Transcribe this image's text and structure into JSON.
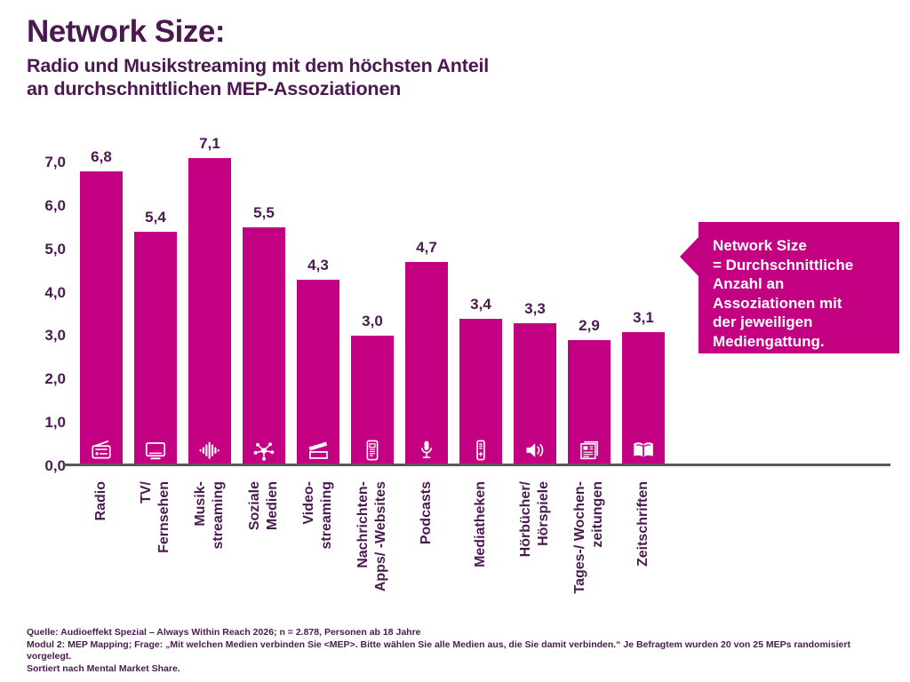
{
  "header": {
    "title": "Network Size:",
    "subtitle": "Radio und Musikstreaming mit dem höchsten Anteil\nan durchschnittlichen MEP-Assoziationen"
  },
  "callout": {
    "text": "Network Size\n= Durchschnittliche\nAnzahl an\nAssoziationen mit\nder jeweiligen\nMediengattung."
  },
  "footer": {
    "lines": [
      "Quelle: Audioeffekt Spezial – Always Within Reach 2026; n = 2.878, Personen ab 18 Jahre",
      "Modul 2: MEP Mapping; Frage: „Mit welchen Medien verbinden Sie <MEP>. Bitte wählen Sie alle Medien aus, die Sie damit verbinden.“ Je Befragtem wurden 20 von 25 MEPs randomisiert vorgelegt.",
      "Sortiert nach Mental Market Share."
    ]
  },
  "colors": {
    "accent": "#c40082",
    "ink": "#4a1950",
    "axis": "#58585a"
  },
  "chart_data": {
    "type": "bar",
    "title": "Network Size",
    "xlabel": "",
    "ylabel": "",
    "ylim": [
      0,
      7
    ],
    "grid": false,
    "legend": false,
    "ytick_labels": [
      "7,0",
      "6,0",
      "5,0",
      "4,0",
      "3,0",
      "2,0",
      "1,0",
      "0,0"
    ],
    "ytick_values": [
      7,
      6,
      5,
      4,
      3,
      2,
      1,
      0
    ],
    "categories": [
      "Radio",
      "TV/Fernsehen",
      "Musikstreaming",
      "Soziale Medien",
      "Videostreaming",
      "Nachrichten-Apps/-Websites",
      "Podcasts",
      "Mediatheken",
      "Hörbücher/Hörspiele",
      "Tages-/Wochenzeitungen",
      "Zeitschriften"
    ],
    "category_lines": [
      [
        "Radio"
      ],
      [
        "TV/",
        "Fernsehen"
      ],
      [
        "Musik-",
        "streaming"
      ],
      [
        "Soziale",
        "Medien"
      ],
      [
        "Video-",
        "streaming"
      ],
      [
        "Nachrichten-",
        "Apps/ -Websites"
      ],
      [
        "Podcasts"
      ],
      [
        "Mediatheken"
      ],
      [
        "Hörbücher/",
        "Hörspiele"
      ],
      [
        "Tages-/ Wochen-",
        "zeitungen"
      ],
      [
        "Zeitschriften"
      ]
    ],
    "values": [
      6.8,
      5.4,
      7.1,
      5.5,
      4.3,
      3.0,
      4.7,
      3.4,
      3.3,
      2.9,
      3.1
    ],
    "value_labels": [
      "6,8",
      "5,4",
      "7,1",
      "5,5",
      "4,3",
      "3,0",
      "4,7",
      "3,4",
      "3,3",
      "2,9",
      "3,1"
    ],
    "ids": [
      "radio",
      "tv-fernsehen",
      "musikstreaming",
      "soziale-medien",
      "videostreaming",
      "nachrichten-apps-websites",
      "podcasts",
      "mediatheken",
      "hoerbuecher-hoerspiele",
      "tages-wochenzeitungen",
      "zeitschriften"
    ],
    "icons": [
      "radio-icon",
      "tv-icon",
      "waveform-icon",
      "network-icon",
      "clapperboard-icon",
      "news-app-icon",
      "microphone-icon",
      "media-library-icon",
      "speaker-icon",
      "newspaper-icon",
      "magazine-icon"
    ]
  }
}
